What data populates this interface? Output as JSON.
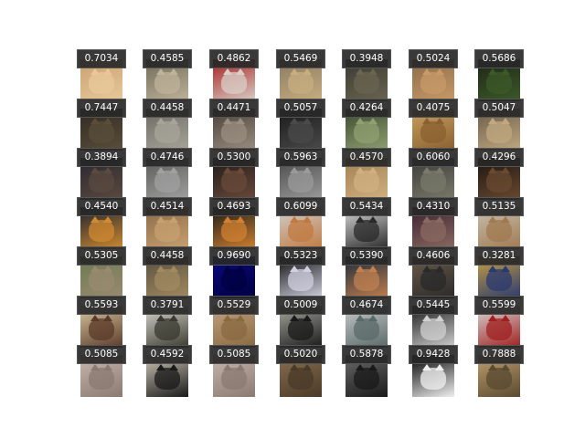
{
  "grid": {
    "rows": [
      {
        "scores": [
          "0.7034",
          "0.4585",
          "0.4862",
          "0.5469",
          "0.3948",
          "0.5024",
          "0.5686"
        ],
        "palettes": [
          [
            "#c9a070",
            "#e8c89a"
          ],
          [
            "#6e6a58",
            "#bfb39a"
          ],
          [
            "#a81c1c",
            "#d8d0c8"
          ],
          [
            "#8a7a62",
            "#c7ad80"
          ],
          [
            "#3a3a32",
            "#6a6450"
          ],
          [
            "#8a6a48",
            "#c89a68"
          ],
          [
            "#1e2418",
            "#3c5a28"
          ]
        ]
      },
      {
        "scores": [
          "0.7447",
          "0.4458",
          "0.4471",
          "0.5057",
          "0.4264",
          "0.4075",
          "0.5047"
        ],
        "palettes": [
          [
            "#2e2a22",
            "#5a4e3a"
          ],
          [
            "#6a6a62",
            "#a8a49a"
          ],
          [
            "#4a4038",
            "#9a8e80"
          ],
          [
            "#1a1a1a",
            "#4a4a4a"
          ],
          [
            "#3a4a30",
            "#90a070"
          ],
          [
            "#c8a060",
            "#8a6030"
          ],
          [
            "#6a5a48",
            "#c0a880"
          ]
        ]
      },
      {
        "scores": [
          "0.3894",
          "0.4746",
          "0.5300",
          "0.5963",
          "0.4570",
          "0.6060",
          "0.4296"
        ],
        "palettes": [
          [
            "#2a2630",
            "#5a4a40"
          ],
          [
            "#5a5a58",
            "#a0a0a0"
          ],
          [
            "#1e1a18",
            "#6a4a3a"
          ],
          [
            "#4a4a4a",
            "#9a9a9a"
          ],
          [
            "#a08050",
            "#d0b080"
          ],
          [
            "#3a3a3a",
            "#7a7a6a"
          ],
          [
            "#1a1410",
            "#6a4a30"
          ]
        ]
      },
      {
        "scores": [
          "0.4540",
          "0.4514",
          "0.4693",
          "0.6099",
          "0.5434",
          "0.4310",
          "0.5135"
        ],
        "palettes": [
          [
            "#1a2230",
            "#d08a30"
          ],
          [
            "#8a6a48",
            "#c8a070"
          ],
          [
            "#1a1a1a",
            "#d08030"
          ],
          [
            "#d0d0d0",
            "#c07a40"
          ],
          [
            "#d8d8d8",
            "#2a2a2a"
          ],
          [
            "#3a2030",
            "#8a6a60"
          ],
          [
            "#c8c0b0",
            "#a07a50"
          ]
        ]
      },
      {
        "scores": [
          "0.5305",
          "0.4458",
          "0.9690",
          "0.5323",
          "0.5390",
          "0.4606",
          "0.3281"
        ],
        "palettes": [
          [
            "#6a7a50",
            "#9a8a70"
          ],
          [
            "#5a5040",
            "#a08a60"
          ],
          [
            "#0a0a80",
            "#000040"
          ],
          [
            "#101010",
            "#d0d0e0"
          ],
          [
            "#1a2a3a",
            "#c08050"
          ],
          [
            "#6a5a4a",
            "#2a2a2a"
          ],
          [
            "#c8a040",
            "#2a3a70"
          ]
        ]
      },
      {
        "scores": [
          "0.5593",
          "0.3791",
          "0.5529",
          "0.5009",
          "0.4674",
          "0.5445",
          "0.5599"
        ],
        "palettes": [
          [
            "#d8c8a0",
            "#5a3a2a"
          ],
          [
            "#d8d8d0",
            "#3a3a30"
          ],
          [
            "#c0a080",
            "#8a6a40"
          ],
          [
            "#a8a8a0",
            "#1a1a1a"
          ],
          [
            "#c8c8c8",
            "#5a6a6a"
          ],
          [
            "#1a1a1a",
            "#d0d0d0"
          ],
          [
            "#d8d8d8",
            "#a02020"
          ]
        ]
      },
      {
        "scores": [
          "0.5085",
          "0.4592",
          "0.5085",
          "0.5020",
          "0.5878",
          "0.9428",
          "0.7888"
        ],
        "palettes": [
          [
            "#c8b8b0",
            "#8a7a70"
          ],
          [
            "#d0c8b8",
            "#1a1a1a"
          ],
          [
            "#c8b8b0",
            "#8a7a70"
          ],
          [
            "#8a7050",
            "#4a3a28"
          ],
          [
            "#6a6a6a",
            "#1a1a1a"
          ],
          [
            "#000000",
            "#f0f0f0"
          ],
          [
            "#c0a070",
            "#5a4a30"
          ]
        ]
      }
    ]
  }
}
